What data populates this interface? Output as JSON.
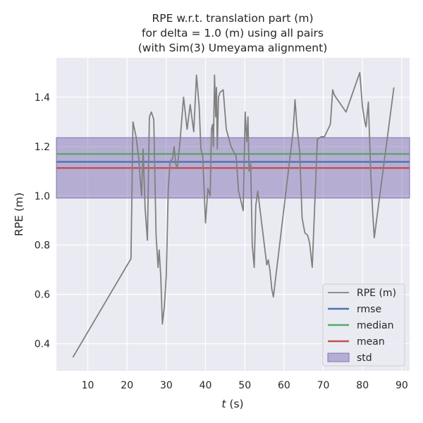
{
  "chart_data": {
    "type": "line",
    "title_lines": [
      "RPE w.r.t. translation part (m)",
      "for delta = 1.0 (m) using all pairs",
      "(with Sim(3) Umeyama alignment)"
    ],
    "xlabel_italic": "t",
    "xlabel_rest": " (s)",
    "ylabel": "RPE (m)",
    "xlim": [
      2,
      92
    ],
    "ylim": [
      0.29,
      1.56
    ],
    "xticks": [
      10,
      20,
      30,
      40,
      50,
      60,
      70,
      80,
      90
    ],
    "yticks": [
      0.4,
      0.6,
      0.8,
      1.0,
      1.2,
      1.4
    ],
    "grid": true,
    "legend_position": "bottom-right",
    "series": [
      {
        "name": "RPE (m)",
        "color": "#808080",
        "x": [
          6.2,
          21.0,
          21.5,
          22.3,
          22.6,
          23.0,
          23.3,
          23.7,
          24.1,
          24.6,
          25.2,
          25.7,
          26.2,
          26.8,
          27.4,
          27.9,
          28.2,
          28.6,
          29.0,
          29.5,
          30.0,
          30.5,
          31.0,
          31.6,
          32.0,
          32.4,
          32.8,
          33.5,
          34.4,
          35.3,
          36.1,
          37.0,
          37.7,
          38.4,
          38.8,
          39.3,
          40.0,
          40.6,
          41.2,
          41.5,
          41.8,
          42.0,
          42.3,
          42.6,
          42.8,
          43.0,
          43.3,
          43.7,
          44.5,
          45.3,
          46.5,
          47.8,
          48.4,
          49.6,
          50.1,
          50.5,
          50.8,
          51.1,
          51.5,
          51.9,
          52.4,
          52.8,
          53.3,
          55.6,
          56.0,
          56.4,
          56.9,
          57.3,
          62.3,
          62.8,
          63.3,
          64.0,
          64.6,
          65.3,
          66.0,
          66.5,
          67.2,
          68.5,
          69.5,
          70.3,
          71.8,
          72.4,
          72.8,
          73.2,
          75.8,
          79.3,
          80.0,
          80.6,
          80.9,
          81.5,
          82.1,
          82.6,
          83.0,
          88.0
        ],
        "y": [
          0.345,
          0.745,
          1.3,
          1.24,
          1.2,
          1.15,
          1.08,
          1.0,
          1.19,
          0.95,
          0.82,
          1.32,
          1.34,
          1.31,
          0.84,
          0.71,
          0.78,
          0.67,
          0.48,
          0.55,
          0.68,
          1.03,
          1.14,
          1.15,
          1.2,
          1.13,
          1.11,
          1.22,
          1.4,
          1.27,
          1.37,
          1.26,
          1.49,
          1.36,
          1.19,
          1.16,
          0.89,
          1.03,
          1.0,
          1.27,
          1.29,
          1.2,
          1.49,
          1.32,
          1.44,
          1.19,
          1.4,
          1.42,
          1.43,
          1.27,
          1.2,
          1.16,
          1.02,
          0.94,
          1.34,
          1.22,
          1.32,
          1.1,
          1.13,
          0.8,
          0.71,
          0.96,
          1.02,
          0.72,
          0.74,
          0.7,
          0.62,
          0.59,
          1.26,
          1.39,
          1.28,
          1.18,
          0.91,
          0.85,
          0.84,
          0.81,
          0.71,
          1.23,
          1.24,
          1.24,
          1.29,
          1.43,
          1.41,
          1.4,
          1.34,
          1.5,
          1.36,
          1.3,
          1.28,
          1.38,
          1.09,
          0.93,
          0.83,
          1.44
        ]
      },
      {
        "name": "rmse",
        "color": "#4c72b0",
        "value": 1.138
      },
      {
        "name": "median",
        "color": "#55a868",
        "value": 1.17
      },
      {
        "name": "mean",
        "color": "#c44e52",
        "value": 1.113
      },
      {
        "name": "std",
        "color": "#8172b2",
        "band": [
          0.991,
          1.236
        ]
      }
    ]
  }
}
